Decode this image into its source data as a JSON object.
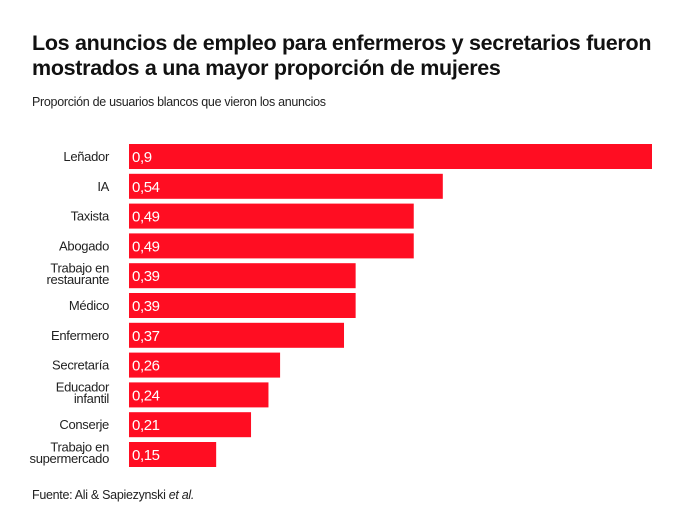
{
  "header": {
    "title": "Los anuncios de empleo para enfermeros y secretarios fueron mostrados a una mayor proporción de mujeres",
    "subtitle": "Proporción de usuarios blancos que vieron los anuncios"
  },
  "footer": {
    "source_prefix": "Fuente: Ali & Sapiezynski ",
    "source_italic": "et al."
  },
  "chart_data": {
    "type": "bar",
    "orientation": "horizontal",
    "categories": [
      "Leñador",
      "IA",
      "Taxista",
      "Abogado",
      "Trabajo en restaurante",
      "Médico",
      "Enfermero",
      "Secretaría",
      "Educador infantil",
      "Conserje",
      "Trabajo en supermercado"
    ],
    "category_lines": [
      [
        "Leñador"
      ],
      [
        "IA"
      ],
      [
        "Taxista"
      ],
      [
        "Abogado"
      ],
      [
        "Trabajo en",
        "restaurante"
      ],
      [
        "Médico"
      ],
      [
        "Enfermero"
      ],
      [
        "Secretaría"
      ],
      [
        "Educador",
        "infantil"
      ],
      [
        "Conserje"
      ],
      [
        "Trabajo en",
        "supermercado"
      ]
    ],
    "values": [
      0.9,
      0.54,
      0.49,
      0.49,
      0.39,
      0.39,
      0.37,
      0.26,
      0.24,
      0.21,
      0.15
    ],
    "value_labels": [
      "0,9",
      "0,54",
      "0,49",
      "0,49",
      "0,39",
      "0,39",
      "0,37",
      "0,26",
      "0,24",
      "0,21",
      "0,15"
    ],
    "xlim": [
      0,
      0.9
    ],
    "grid": false,
    "bar_color": "#ff0d22",
    "label_color": "#ffffff"
  }
}
